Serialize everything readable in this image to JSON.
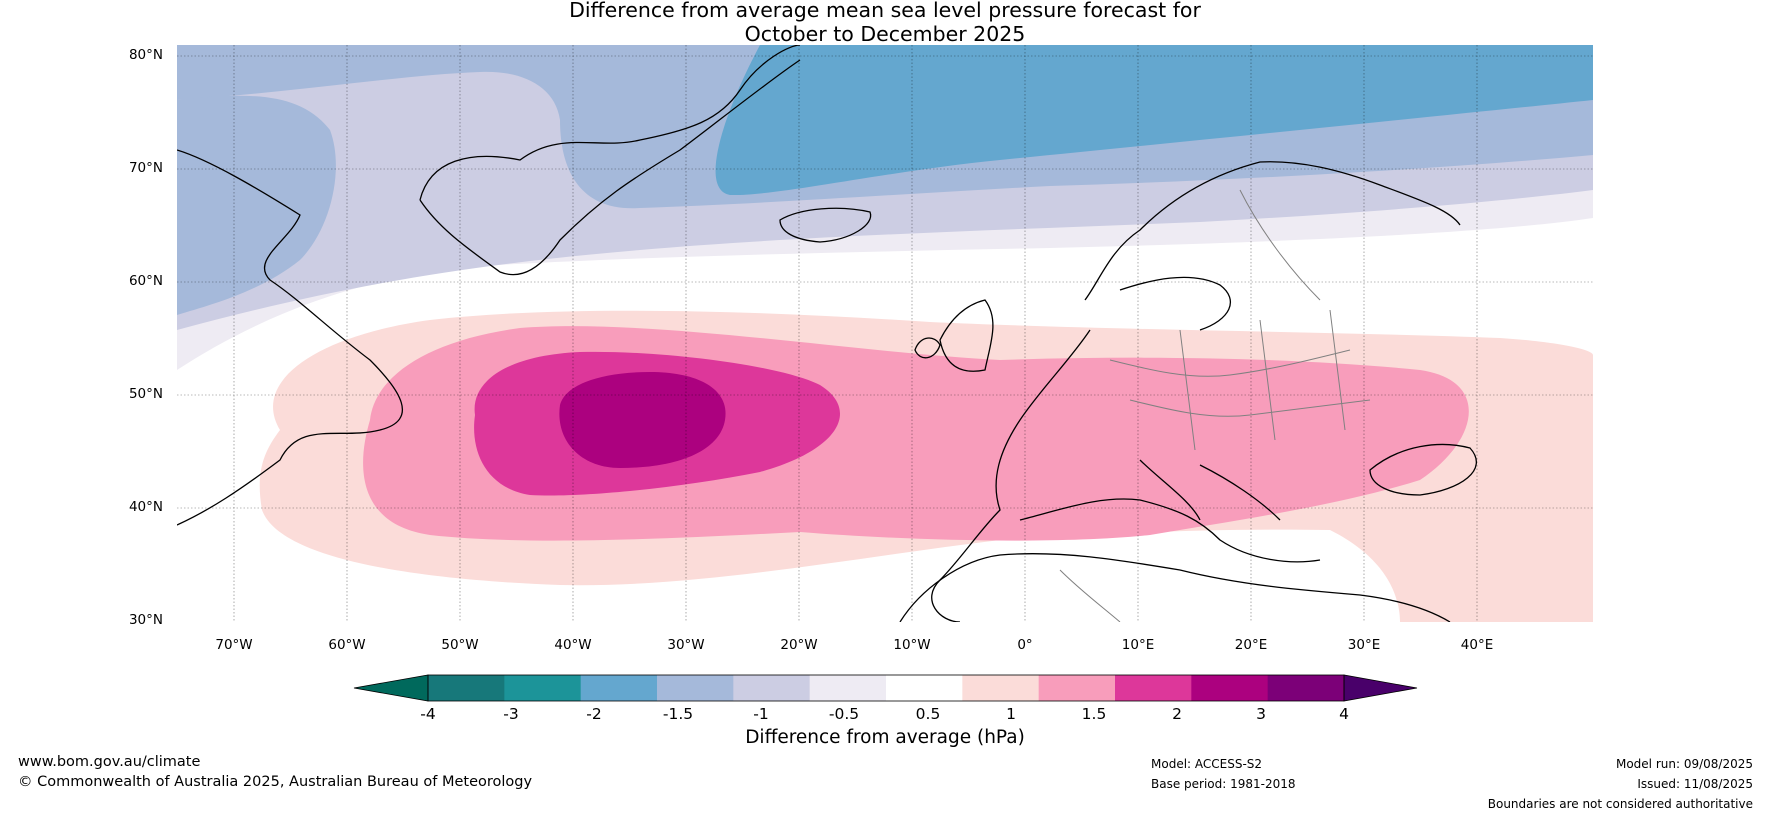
{
  "title": {
    "line1": "Difference from average mean sea level pressure forecast for",
    "line2": "October to December 2025"
  },
  "map": {
    "projection": "equirectangular",
    "lon_range": [
      -75,
      50
    ],
    "lat_range": [
      30,
      81
    ],
    "lat_labels": [
      "80°N",
      "70°N",
      "60°N",
      "50°N",
      "40°N",
      "30°N"
    ],
    "lat_values": [
      80,
      70,
      60,
      50,
      40,
      30
    ],
    "lon_labels": [
      "70°W",
      "60°W",
      "50°W",
      "40°W",
      "30°W",
      "20°W",
      "10°W",
      "0°",
      "10°E",
      "20°E",
      "30°E",
      "40°E"
    ],
    "lon_values": [
      -70,
      -60,
      -50,
      -40,
      -30,
      -20,
      -10,
      0,
      10,
      20,
      30,
      40
    ],
    "gridlines": true,
    "coastline_color": "#000000",
    "border_color": "#808080"
  },
  "colorbar": {
    "label": "Difference from average (hPa)",
    "ticks": [
      "-4",
      "-3",
      "-2",
      "-1.5",
      "-1",
      "-0.5",
      "0.5",
      "1",
      "1.5",
      "2",
      "3",
      "4"
    ],
    "colors": [
      "#17787a",
      "#1c9499",
      "#64a7cf",
      "#a5b9da",
      "#cccde3",
      "#eeebf3",
      "#ffffff",
      "#fbdcd9",
      "#f89dbb",
      "#dd379a",
      "#ac017f",
      "#7c0078"
    ],
    "extend_low_color": "#00695c",
    "extend_high_color": "#49006a"
  },
  "footer": {
    "website": "www.bom.gov.au/climate",
    "copyright": "© Commonwealth of Australia 2025, Australian Bureau of Meteorology",
    "model": "Model: ACCESS-S2",
    "base_period": "Base period: 1981-2018",
    "model_run": "Model run: 09/08/2025",
    "issued": "Issued: 11/08/2025",
    "disclaimer": "Boundaries are not considered authoritative"
  }
}
